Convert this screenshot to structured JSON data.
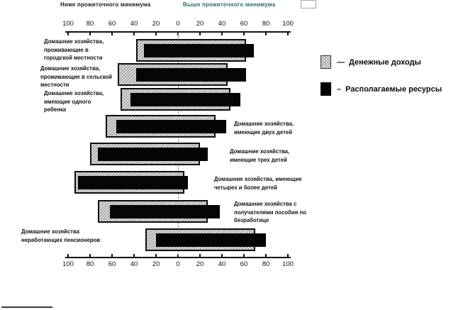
{
  "chart_data": {
    "type": "bar",
    "variant": "diverging-horizontal-paired",
    "title": "",
    "axis_left_label": "Ниже прожиточного минимума",
    "axis_right_label": "Выше прожиточного минимума",
    "tick_labels": [
      "100",
      "80",
      "60",
      "40",
      "20",
      "0",
      "20",
      "40",
      "60",
      "80",
      "100"
    ],
    "axis_range_each_side": [
      0,
      100
    ],
    "unit": "percent-of-households",
    "grid": "center-dashed-line-only",
    "legend_position": "right",
    "categories": [
      "Домашние хозяйства,\nпроживающие в\nгородской местности",
      "Домашние хозяйства,\nпроживающие в сельской\nместности",
      "Домашние хозяйства,\nимеющие одного\nребенка",
      "Домашние хозяйства,\nимеющие двух детей",
      "Домашние хозяйства,\nимеющие трех детей",
      "Домашние хозяйства, имеющие\nчетырех и более детей",
      "Домашние хозяйства с\nполучателями пособия по\nбезработице",
      "Домашние хозяйства\nнеработающих пенсионеров"
    ],
    "series": [
      {
        "name": "Денежные доходы",
        "style": "hatched-gray",
        "below_minimum": [
          38,
          55,
          52,
          66,
          80,
          94,
          73,
          30
        ],
        "above_minimum": [
          62,
          45,
          48,
          34,
          20,
          6,
          27,
          70
        ]
      },
      {
        "name": "Располагаемые ресурсы",
        "style": "solid-black",
        "below_minimum": [
          31,
          38,
          43,
          56,
          73,
          91,
          62,
          20
        ],
        "above_minimum": [
          69,
          62,
          57,
          44,
          27,
          9,
          38,
          80
        ]
      }
    ]
  },
  "legend": {
    "money_income_label": "Денежные доходы",
    "disposable_resources_label": "Располагаемые ресурсы",
    "dash_1": "—",
    "dash_2": "–"
  },
  "colors": {
    "right_header_teal": "#2a6b6d",
    "bar_black": "#050505",
    "bar_gray_fill": "#d6d6d6",
    "bar_gray_dot": "#9f9f9f",
    "axis": "#111111"
  }
}
